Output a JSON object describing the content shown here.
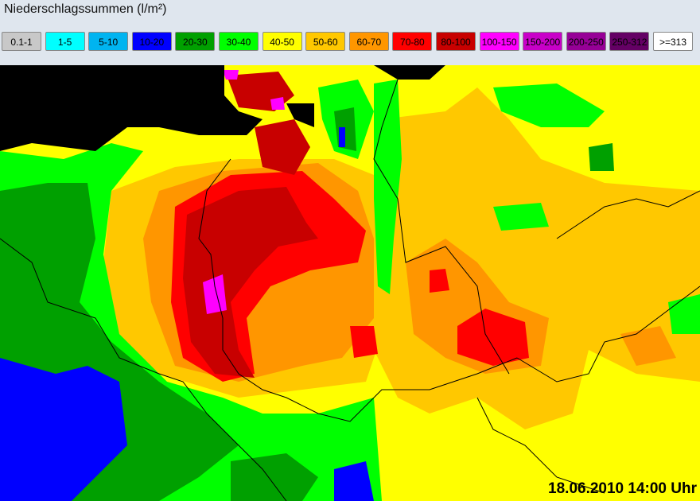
{
  "header": {
    "title": "Niederschlagssummen (l/m²)"
  },
  "legend": {
    "items": [
      {
        "label": "0.1-1",
        "color": "#c8c8c8"
      },
      {
        "label": "1-5",
        "color": "#00ffff"
      },
      {
        "label": "5-10",
        "color": "#00b4f0"
      },
      {
        "label": "10-20",
        "color": "#0000ff"
      },
      {
        "label": "20-30",
        "color": "#00a000"
      },
      {
        "label": "30-40",
        "color": "#00ff00"
      },
      {
        "label": "40-50",
        "color": "#ffff00"
      },
      {
        "label": "50-60",
        "color": "#ffc800"
      },
      {
        "label": "60-70",
        "color": "#ff9600"
      },
      {
        "label": "70-80",
        "color": "#ff0000"
      },
      {
        "label": "80-100",
        "color": "#c80000"
      },
      {
        "label": "100-150",
        "color": "#ff00ff"
      },
      {
        "label": "150-200",
        "color": "#c800c8"
      },
      {
        "label": "200-250",
        "color": "#960096"
      },
      {
        "label": "250-312",
        "color": "#640064"
      },
      {
        "label": ">=313",
        "color": "#ffffff"
      }
    ]
  },
  "map": {
    "timestamp": "18.06.2010 14:00 Uhr"
  }
}
